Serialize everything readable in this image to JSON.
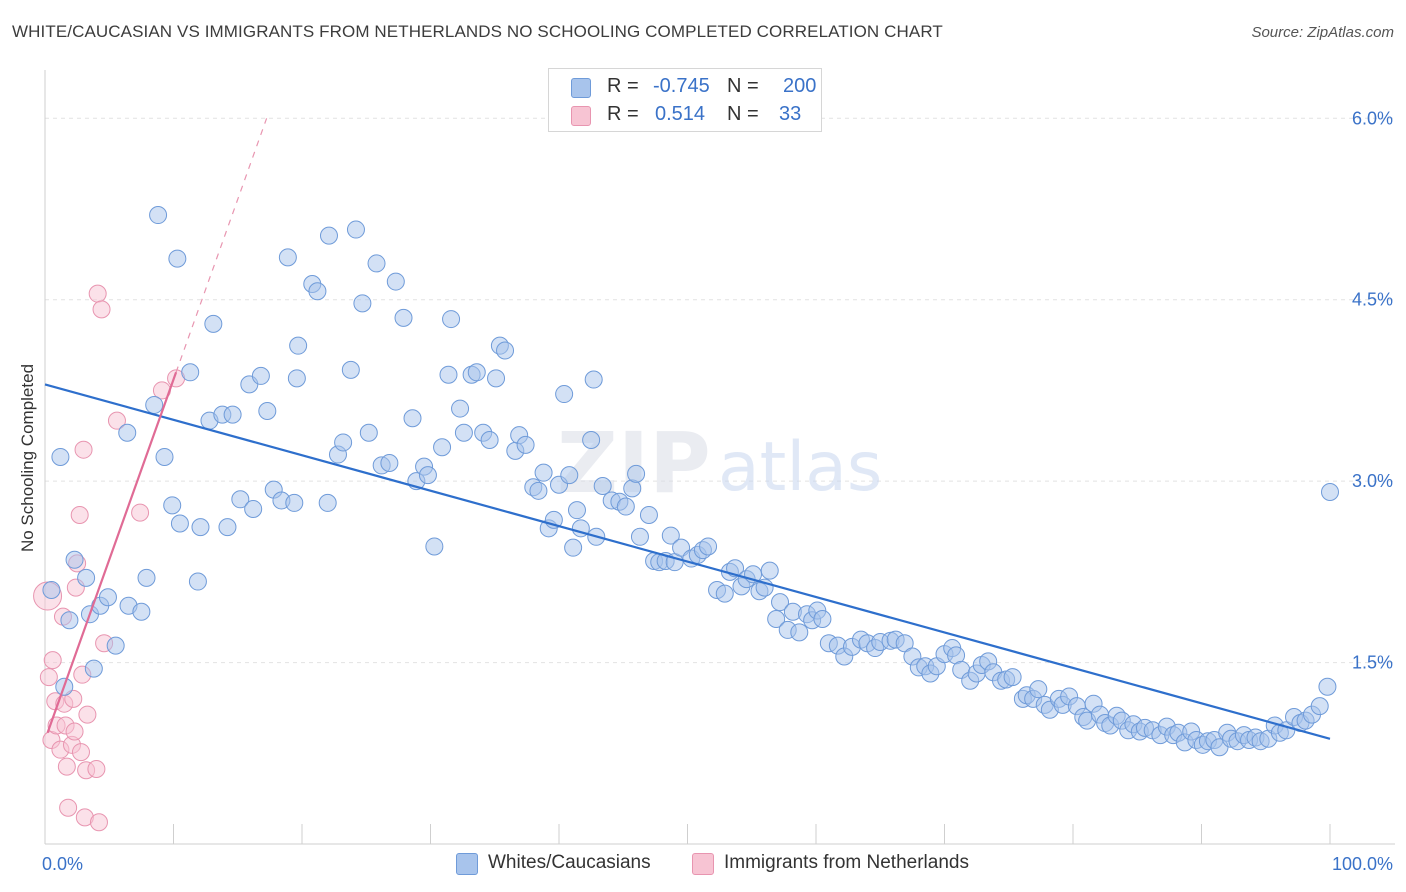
{
  "title": "WHITE/CAUCASIAN VS IMMIGRANTS FROM NETHERLANDS NO SCHOOLING COMPLETED CORRELATION CHART",
  "source": "Source: ZipAtlas.com",
  "watermark": {
    "zip": "ZIP",
    "atlas": "atlas"
  },
  "colors": {
    "blue_fill": "#a8c4ec",
    "blue_stroke": "#6f9bd9",
    "blue_line": "#2e6fcc",
    "pink_fill": "#f7c4d3",
    "pink_stroke": "#e895b0",
    "pink_line": "#e06b95",
    "tick_label": "#3a72c8",
    "grid": "#e2e2e2"
  },
  "legend": {
    "rows": [
      {
        "r_label": "R =",
        "r_value": "-0.745",
        "n_label": "N =",
        "n_value": "200",
        "color": "#a8c4ec"
      },
      {
        "r_label": "R =",
        "r_value": "0.514",
        "n_label": "N =",
        "n_value": "33",
        "color": "#f7c4d3"
      }
    ]
  },
  "bottom_legend": [
    {
      "label": "Whites/Caucasians",
      "color": "#a8c4ec"
    },
    {
      "label": "Immigrants from Netherlands",
      "color": "#f7c4d3"
    }
  ],
  "chart_data": {
    "type": "scatter",
    "title": "WHITE/CAUCASIAN VS IMMIGRANTS FROM NETHERLANDS NO SCHOOLING COMPLETED CORRELATION CHART",
    "xlabel": "",
    "ylabel": "No Schooling Completed",
    "xlim": [
      0,
      100
    ],
    "ylim": [
      0,
      6.3
    ],
    "x_tick_labels": [
      "0.0%",
      "100.0%"
    ],
    "y_ticks": [
      1.5,
      3.0,
      4.5,
      6.0
    ],
    "y_tick_labels": [
      "1.5%",
      "3.0%",
      "4.5%",
      "6.0%"
    ],
    "grid": true,
    "legend_position": "top-center",
    "series": [
      {
        "name": "Whites/Caucasians",
        "trend": {
          "x": [
            0,
            100
          ],
          "y": [
            3.8,
            0.87
          ],
          "style": "solid"
        },
        "points": [
          [
            0.5,
            2.1
          ],
          [
            1.2,
            3.2
          ],
          [
            1.5,
            1.3
          ],
          [
            1.9,
            1.85
          ],
          [
            2.3,
            2.35
          ],
          [
            3.2,
            2.2
          ],
          [
            3.5,
            1.9
          ],
          [
            3.8,
            1.45
          ],
          [
            4.3,
            1.97
          ],
          [
            4.9,
            2.04
          ],
          [
            5.5,
            1.64
          ],
          [
            6.4,
            3.4
          ],
          [
            6.5,
            1.97
          ],
          [
            7.5,
            1.92
          ],
          [
            7.9,
            2.2
          ],
          [
            8.5,
            3.63
          ],
          [
            8.8,
            5.2
          ],
          [
            9.3,
            3.2
          ],
          [
            9.9,
            2.8
          ],
          [
            10.3,
            4.84
          ],
          [
            10.5,
            2.65
          ],
          [
            11.3,
            3.9
          ],
          [
            11.9,
            2.17
          ],
          [
            12.1,
            2.62
          ],
          [
            12.8,
            3.5
          ],
          [
            13.1,
            4.3
          ],
          [
            13.8,
            3.55
          ],
          [
            14.2,
            2.62
          ],
          [
            14.6,
            3.55
          ],
          [
            15.2,
            2.85
          ],
          [
            15.9,
            3.8
          ],
          [
            16.2,
            2.77
          ],
          [
            16.8,
            3.87
          ],
          [
            17.3,
            3.58
          ],
          [
            17.8,
            2.93
          ],
          [
            18.4,
            2.84
          ],
          [
            18.9,
            4.85
          ],
          [
            19.4,
            2.82
          ],
          [
            19.6,
            3.85
          ],
          [
            19.7,
            4.12
          ],
          [
            20.8,
            4.63
          ],
          [
            21.2,
            4.57
          ],
          [
            22.0,
            2.82
          ],
          [
            22.1,
            5.03
          ],
          [
            22.8,
            3.22
          ],
          [
            23.2,
            3.32
          ],
          [
            23.8,
            3.92
          ],
          [
            24.2,
            5.08
          ],
          [
            24.7,
            4.47
          ],
          [
            25.2,
            3.4
          ],
          [
            25.8,
            4.8
          ],
          [
            26.2,
            3.13
          ],
          [
            26.8,
            3.15
          ],
          [
            27.3,
            4.65
          ],
          [
            27.9,
            4.35
          ],
          [
            28.6,
            3.52
          ],
          [
            28.9,
            3.0
          ],
          [
            29.5,
            3.12
          ],
          [
            29.8,
            3.05
          ],
          [
            30.3,
            2.46
          ],
          [
            30.9,
            3.28
          ],
          [
            31.4,
            3.88
          ],
          [
            31.6,
            4.34
          ],
          [
            32.3,
            3.6
          ],
          [
            32.6,
            3.4
          ],
          [
            33.2,
            3.88
          ],
          [
            33.6,
            3.9
          ],
          [
            34.1,
            3.4
          ],
          [
            34.6,
            3.34
          ],
          [
            35.1,
            3.85
          ],
          [
            35.4,
            4.12
          ],
          [
            35.8,
            4.08
          ],
          [
            36.6,
            3.25
          ],
          [
            36.9,
            3.38
          ],
          [
            37.4,
            3.3
          ],
          [
            38.0,
            2.95
          ],
          [
            38.4,
            2.92
          ],
          [
            38.8,
            3.07
          ],
          [
            39.2,
            2.61
          ],
          [
            39.6,
            2.68
          ],
          [
            40.0,
            2.97
          ],
          [
            40.4,
            3.72
          ],
          [
            40.8,
            3.05
          ],
          [
            41.1,
            2.45
          ],
          [
            41.4,
            2.76
          ],
          [
            41.7,
            2.61
          ],
          [
            42.5,
            3.34
          ],
          [
            42.7,
            3.84
          ],
          [
            42.9,
            2.54
          ],
          [
            43.4,
            2.96
          ],
          [
            44.1,
            2.84
          ],
          [
            44.7,
            2.83
          ],
          [
            45.2,
            2.79
          ],
          [
            45.7,
            2.94
          ],
          [
            46.0,
            3.06
          ],
          [
            46.3,
            2.54
          ],
          [
            47.0,
            2.72
          ],
          [
            47.4,
            2.34
          ],
          [
            47.8,
            2.33
          ],
          [
            48.3,
            2.34
          ],
          [
            48.7,
            2.55
          ],
          [
            49.0,
            2.33
          ],
          [
            49.5,
            2.45
          ],
          [
            50.3,
            2.36
          ],
          [
            50.8,
            2.39
          ],
          [
            51.2,
            2.43
          ],
          [
            51.6,
            2.46
          ],
          [
            52.3,
            2.1
          ],
          [
            52.9,
            2.07
          ],
          [
            53.3,
            2.25
          ],
          [
            53.7,
            2.28
          ],
          [
            54.2,
            2.13
          ],
          [
            54.6,
            2.19
          ],
          [
            55.1,
            2.23
          ],
          [
            55.6,
            2.09
          ],
          [
            56.0,
            2.12
          ],
          [
            56.4,
            2.26
          ],
          [
            56.9,
            1.86
          ],
          [
            57.2,
            2.0
          ],
          [
            57.8,
            1.77
          ],
          [
            58.2,
            1.92
          ],
          [
            58.7,
            1.75
          ],
          [
            59.3,
            1.9
          ],
          [
            59.7,
            1.85
          ],
          [
            60.1,
            1.93
          ],
          [
            60.5,
            1.86
          ],
          [
            61.0,
            1.66
          ],
          [
            61.7,
            1.64
          ],
          [
            62.2,
            1.55
          ],
          [
            62.8,
            1.63
          ],
          [
            63.5,
            1.69
          ],
          [
            64.0,
            1.66
          ],
          [
            64.6,
            1.62
          ],
          [
            65.0,
            1.67
          ],
          [
            65.8,
            1.68
          ],
          [
            66.2,
            1.69
          ],
          [
            66.9,
            1.66
          ],
          [
            67.5,
            1.55
          ],
          [
            68.0,
            1.46
          ],
          [
            68.5,
            1.47
          ],
          [
            68.9,
            1.41
          ],
          [
            69.4,
            1.47
          ],
          [
            70.0,
            1.57
          ],
          [
            70.6,
            1.62
          ],
          [
            70.9,
            1.56
          ],
          [
            71.3,
            1.44
          ],
          [
            72.0,
            1.35
          ],
          [
            72.5,
            1.41
          ],
          [
            72.9,
            1.48
          ],
          [
            73.4,
            1.51
          ],
          [
            73.8,
            1.42
          ],
          [
            74.4,
            1.35
          ],
          [
            74.8,
            1.36
          ],
          [
            75.3,
            1.38
          ],
          [
            76.1,
            1.2
          ],
          [
            76.4,
            1.23
          ],
          [
            76.9,
            1.2
          ],
          [
            77.3,
            1.28
          ],
          [
            77.8,
            1.15
          ],
          [
            78.2,
            1.11
          ],
          [
            78.9,
            1.2
          ],
          [
            79.2,
            1.15
          ],
          [
            79.7,
            1.22
          ],
          [
            80.3,
            1.14
          ],
          [
            80.8,
            1.05
          ],
          [
            81.1,
            1.02
          ],
          [
            81.6,
            1.16
          ],
          [
            82.1,
            1.07
          ],
          [
            82.5,
            1.0
          ],
          [
            82.9,
            0.98
          ],
          [
            83.4,
            1.06
          ],
          [
            83.8,
            1.02
          ],
          [
            84.3,
            0.94
          ],
          [
            84.7,
            0.99
          ],
          [
            85.2,
            0.93
          ],
          [
            85.6,
            0.96
          ],
          [
            86.2,
            0.94
          ],
          [
            86.8,
            0.9
          ],
          [
            87.3,
            0.97
          ],
          [
            87.8,
            0.9
          ],
          [
            88.2,
            0.92
          ],
          [
            88.7,
            0.84
          ],
          [
            89.2,
            0.93
          ],
          [
            89.6,
            0.86
          ],
          [
            90.1,
            0.82
          ],
          [
            90.5,
            0.85
          ],
          [
            91.0,
            0.86
          ],
          [
            91.4,
            0.8
          ],
          [
            92.0,
            0.92
          ],
          [
            92.3,
            0.87
          ],
          [
            92.8,
            0.85
          ],
          [
            93.3,
            0.9
          ],
          [
            93.7,
            0.86
          ],
          [
            94.2,
            0.88
          ],
          [
            94.6,
            0.85
          ],
          [
            95.2,
            0.87
          ],
          [
            95.7,
            0.98
          ],
          [
            96.1,
            0.92
          ],
          [
            96.6,
            0.94
          ],
          [
            97.2,
            1.05
          ],
          [
            97.7,
            1.0
          ],
          [
            98.1,
            1.02
          ],
          [
            98.6,
            1.07
          ],
          [
            99.2,
            1.14
          ],
          [
            99.8,
            1.3
          ],
          [
            100.0,
            2.91
          ]
        ]
      },
      {
        "name": "Immigrants from Netherlands",
        "trend": {
          "x": [
            0.2,
            10.2
          ],
          "y": [
            0.92,
            3.9
          ],
          "style": "solid",
          "extended_to_y": 6.0,
          "extension_style": "dashed"
        },
        "points": [
          [
            0.2,
            2.05
          ],
          [
            0.3,
            1.38
          ],
          [
            0.5,
            0.86
          ],
          [
            0.6,
            1.52
          ],
          [
            0.8,
            1.18
          ],
          [
            0.9,
            0.98
          ],
          [
            1.2,
            0.78
          ],
          [
            1.4,
            1.88
          ],
          [
            1.5,
            1.16
          ],
          [
            1.6,
            0.98
          ],
          [
            1.7,
            0.64
          ],
          [
            1.8,
            0.3
          ],
          [
            2.1,
            0.82
          ],
          [
            2.2,
            1.2
          ],
          [
            2.3,
            0.93
          ],
          [
            2.4,
            2.12
          ],
          [
            2.5,
            2.32
          ],
          [
            2.7,
            2.72
          ],
          [
            2.8,
            0.76
          ],
          [
            2.9,
            1.4
          ],
          [
            3.0,
            3.26
          ],
          [
            3.1,
            0.22
          ],
          [
            3.2,
            0.61
          ],
          [
            3.3,
            1.07
          ],
          [
            4.0,
            0.62
          ],
          [
            4.1,
            4.55
          ],
          [
            4.2,
            0.18
          ],
          [
            4.4,
            4.42
          ],
          [
            4.6,
            1.66
          ],
          [
            5.6,
            3.5
          ],
          [
            7.4,
            2.74
          ],
          [
            9.1,
            3.75
          ],
          [
            10.2,
            3.85
          ]
        ]
      }
    ]
  }
}
